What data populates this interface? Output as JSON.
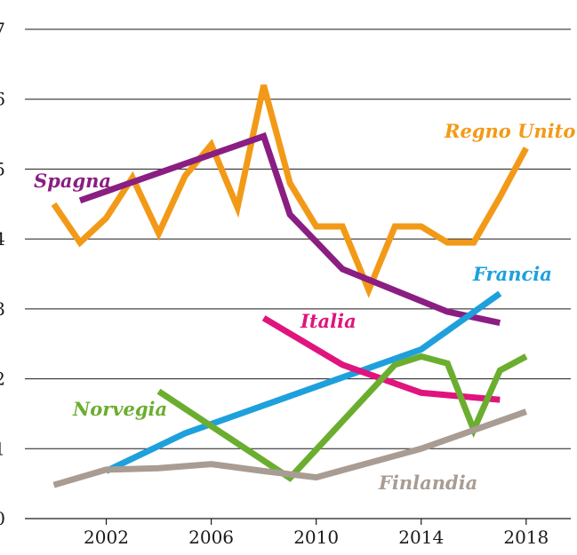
{
  "chart_data": {
    "type": "line",
    "title": "",
    "xlabel": "",
    "ylabel": "",
    "xlim": [
      1998.9,
      2019.7
    ],
    "ylim": [
      0,
      7
    ],
    "x_ticks": [
      2002,
      2006,
      2010,
      2014,
      2018
    ],
    "y_ticks": [
      0,
      1,
      2,
      3,
      4,
      5,
      6,
      7
    ],
    "grid": "horizontal",
    "legend": "inline labels",
    "series": [
      {
        "name": "Regno Unito",
        "color": "#F29A17",
        "points": [
          [
            2000,
            4.5
          ],
          [
            2001,
            3.95
          ],
          [
            2002,
            4.3
          ],
          [
            2003,
            4.88
          ],
          [
            2004,
            4.08
          ],
          [
            2005,
            4.9
          ],
          [
            2006,
            5.35
          ],
          [
            2007,
            4.45
          ],
          [
            2008,
            6.2
          ],
          [
            2009,
            4.8
          ],
          [
            2010,
            4.18
          ],
          [
            2011,
            4.18
          ],
          [
            2012,
            3.27
          ],
          [
            2013,
            4.18
          ],
          [
            2014,
            4.18
          ],
          [
            2015,
            3.95
          ],
          [
            2016,
            3.95
          ],
          [
            2017,
            4.6
          ],
          [
            2018,
            5.3
          ]
        ]
      },
      {
        "name": "Spagna",
        "color": "#8A1E82",
        "points": [
          [
            2001,
            4.55
          ],
          [
            2008,
            5.47
          ],
          [
            2009,
            4.35
          ],
          [
            2011,
            3.57
          ],
          [
            2015,
            2.96
          ],
          [
            2017,
            2.8
          ]
        ]
      },
      {
        "name": "Francia",
        "color": "#1EA0DC",
        "points": [
          [
            2002,
            0.68
          ],
          [
            2005,
            1.22
          ],
          [
            2014,
            2.42
          ],
          [
            2017,
            3.22
          ]
        ]
      },
      {
        "name": "Italia",
        "color": "#E0147E",
        "points": [
          [
            2008,
            2.87
          ],
          [
            2011,
            2.2
          ],
          [
            2014,
            1.8
          ],
          [
            2017,
            1.7
          ]
        ]
      },
      {
        "name": "Norvegia",
        "color": "#6BAE2F",
        "points": [
          [
            2004,
            1.82
          ],
          [
            2009,
            0.58
          ],
          [
            2013,
            2.2
          ],
          [
            2014,
            2.32
          ],
          [
            2015,
            2.22
          ],
          [
            2016,
            1.27
          ],
          [
            2017,
            2.12
          ],
          [
            2018,
            2.32
          ]
        ]
      },
      {
        "name": "Finlandia",
        "color": "#A89C93",
        "points": [
          [
            2000,
            0.48
          ],
          [
            2002,
            0.7
          ],
          [
            2004,
            0.72
          ],
          [
            2006,
            0.78
          ],
          [
            2008,
            0.68
          ],
          [
            2010,
            0.59
          ],
          [
            2014,
            1.0
          ],
          [
            2018,
            1.53
          ]
        ]
      }
    ]
  }
}
